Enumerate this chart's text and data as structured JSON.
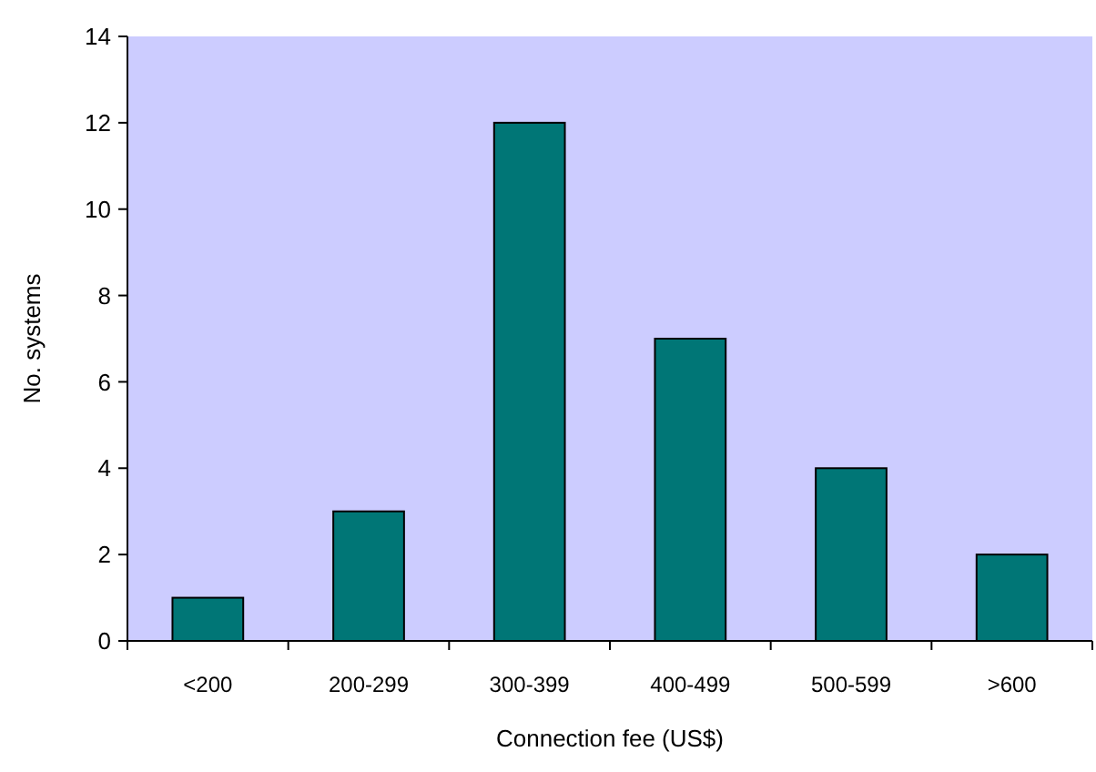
{
  "chart_data": {
    "type": "bar",
    "xlabel": "Connection fee (US$)",
    "ylabel": "No. systems",
    "categories": [
      "<200",
      "200-299",
      "300-399",
      "400-499",
      "500-599",
      ">600"
    ],
    "values": [
      1,
      3,
      12,
      7,
      4,
      2
    ],
    "color": "#007676",
    "ylim": [
      0,
      14
    ],
    "yticks": [
      0,
      2,
      4,
      6,
      8,
      10,
      12,
      14
    ],
    "grid": false
  }
}
